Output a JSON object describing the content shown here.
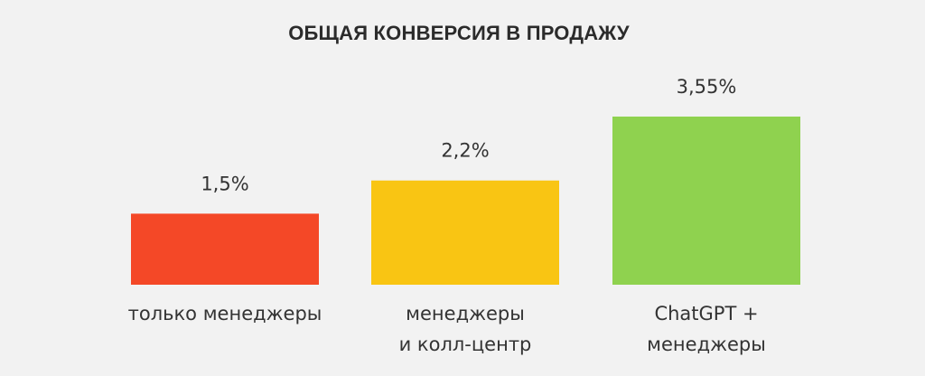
{
  "chart_data": {
    "type": "bar",
    "title": "ОБЩАЯ КОНВЕРСИЯ В ПРОДАЖУ",
    "xlabel": "",
    "ylabel": "",
    "categories": [
      [
        "только менеджеры"
      ],
      [
        "менеджеры",
        "и колл-центр"
      ],
      [
        "ChatGPT +",
        "менеджеры"
      ]
    ],
    "values": [
      1.5,
      2.2,
      3.55
    ],
    "data_labels": [
      "1,5%",
      "2,2%",
      "3,55%"
    ],
    "colors": [
      "#f44827",
      "#f9c513",
      "#8fd24f"
    ],
    "grid": false,
    "legend": "none"
  }
}
